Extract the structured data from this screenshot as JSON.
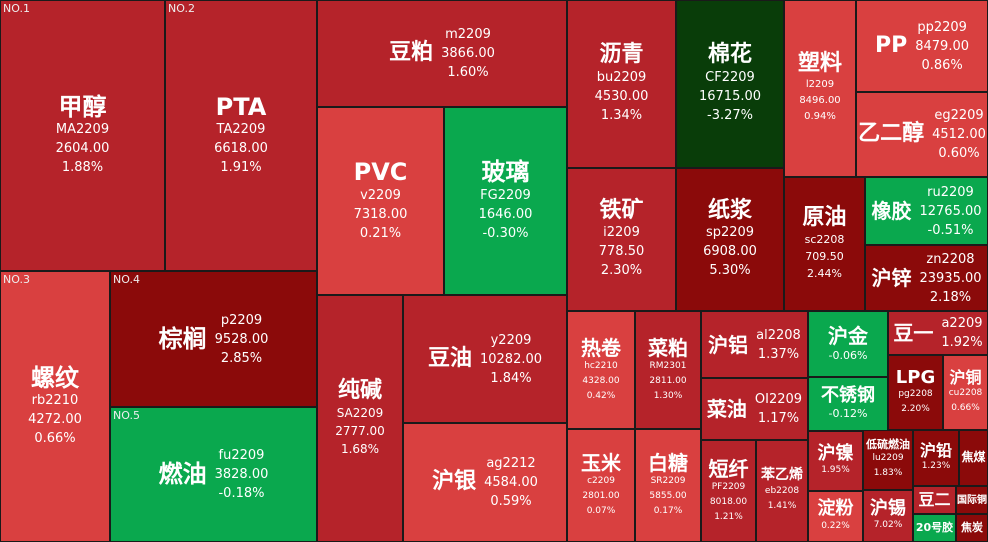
{
  "colors": {
    "up_strong": "#8b0a0a",
    "up_mid": "#b5232a",
    "up_light": "#d94040",
    "down_light": "#0aa84e",
    "down_dark": "#093d09",
    "background": "#1a1a1a"
  },
  "tiles": [
    {
      "id": "jiachun",
      "rank": "NO.1",
      "name": "甲醇",
      "code": "MA2209",
      "price": "2604.00",
      "pct": "1.88%"
    },
    {
      "id": "pta",
      "rank": "NO.2",
      "name": "PTA",
      "code": "TA2209",
      "price": "6618.00",
      "pct": "1.91%"
    },
    {
      "id": "doupo",
      "name": "豆粕",
      "code": "m2209",
      "price": "3866.00",
      "pct": "1.60%"
    },
    {
      "id": "liqing",
      "name": "沥青",
      "code": "bu2209",
      "price": "4530.00",
      "pct": "1.34%"
    },
    {
      "id": "mianhua",
      "name": "棉花",
      "code": "CF2209",
      "price": "16715.00",
      "pct": "-3.27%"
    },
    {
      "id": "suliao",
      "name": "塑料",
      "code": "l2209",
      "price": "8496.00",
      "pct": "0.94%"
    },
    {
      "id": "pp",
      "name": "PP",
      "code": "pp2209",
      "price": "8479.00",
      "pct": "0.86%"
    },
    {
      "id": "yierchun",
      "name": "乙二醇",
      "code": "eg2209",
      "price": "4512.00",
      "pct": "0.60%"
    },
    {
      "id": "pvc",
      "name": "PVC",
      "code": "v2209",
      "price": "7318.00",
      "pct": "0.21%"
    },
    {
      "id": "boli",
      "name": "玻璃",
      "code": "FG2209",
      "price": "1646.00",
      "pct": "-0.30%"
    },
    {
      "id": "tiekuang",
      "name": "铁矿",
      "code": "i2209",
      "price": "778.50",
      "pct": "2.30%"
    },
    {
      "id": "zhijiang",
      "name": "纸浆",
      "code": "sp2209",
      "price": "6908.00",
      "pct": "5.30%"
    },
    {
      "id": "yuanyou",
      "name": "原油",
      "code": "sc2208",
      "price": "709.50",
      "pct": "2.44%"
    },
    {
      "id": "xiangjiao",
      "name": "橡胶",
      "code": "ru2209",
      "price": "12765.00",
      "pct": "-0.51%"
    },
    {
      "id": "huxin",
      "name": "沪锌",
      "code": "zn2208",
      "price": "23935.00",
      "pct": "2.18%"
    },
    {
      "id": "luowen",
      "rank": "NO.3",
      "name": "螺纹",
      "code": "rb2210",
      "price": "4272.00",
      "pct": "0.66%"
    },
    {
      "id": "zonglv",
      "rank": "NO.4",
      "name": "棕榈",
      "code": "p2209",
      "price": "9528.00",
      "pct": "2.85%"
    },
    {
      "id": "ranyou",
      "rank": "NO.5",
      "name": "燃油",
      "code": "fu2209",
      "price": "3828.00",
      "pct": "-0.18%"
    },
    {
      "id": "chunjian",
      "name": "纯碱",
      "code": "SA2209",
      "price": "2777.00",
      "pct": "1.68%"
    },
    {
      "id": "douyou",
      "name": "豆油",
      "code": "y2209",
      "price": "10282.00",
      "pct": "1.84%"
    },
    {
      "id": "huyin",
      "name": "沪银",
      "code": "ag2212",
      "price": "4584.00",
      "pct": "0.59%"
    },
    {
      "id": "rejuan",
      "name": "热卷",
      "code": "hc2210",
      "price": "4328.00",
      "pct": "0.42%"
    },
    {
      "id": "caipo",
      "name": "菜粕",
      "code": "RM2301",
      "price": "2811.00",
      "pct": "1.30%"
    },
    {
      "id": "hulv",
      "name": "沪铝",
      "code": "al2208",
      "price": "",
      "pct": "1.37%"
    },
    {
      "id": "hujin",
      "name": "沪金",
      "code": "",
      "price": "",
      "pct": "-0.06%"
    },
    {
      "id": "douyi",
      "name": "豆一",
      "code": "a2209",
      "price": "",
      "pct": "1.92%"
    },
    {
      "id": "caiyou",
      "name": "菜油",
      "code": "OI2209",
      "price": "",
      "pct": "1.17%"
    },
    {
      "id": "buxiugang",
      "name": "不锈钢",
      "code": "",
      "price": "",
      "pct": "-0.12%"
    },
    {
      "id": "lpg",
      "name": "LPG",
      "code": "pg2208",
      "price": "",
      "pct": "2.20%"
    },
    {
      "id": "hutong",
      "name": "沪铜",
      "code": "cu2208",
      "price": "",
      "pct": "0.66%"
    },
    {
      "id": "yumi",
      "name": "玉米",
      "code": "c2209",
      "price": "2801.00",
      "pct": "0.07%"
    },
    {
      "id": "baitang",
      "name": "白糖",
      "code": "SR2209",
      "price": "5855.00",
      "pct": "0.17%"
    },
    {
      "id": "duanxian",
      "name": "短纤",
      "code": "PF2209",
      "price": "8018.00",
      "pct": "1.21%"
    },
    {
      "id": "benyixi",
      "name": "苯乙烯",
      "code": "eb2208",
      "price": "",
      "pct": "1.41%"
    },
    {
      "id": "hunie",
      "name": "沪镍",
      "code": "",
      "price": "",
      "pct": "1.95%"
    },
    {
      "id": "diliu",
      "name": "低硫燃油",
      "code": "lu2209",
      "price": "",
      "pct": "1.83%"
    },
    {
      "id": "huqian",
      "name": "沪铅",
      "code": "",
      "price": "",
      "pct": "1.23%"
    },
    {
      "id": "jiaomei",
      "name": "焦煤",
      "code": "",
      "price": "",
      "pct": ""
    },
    {
      "id": "dianfen",
      "name": "淀粉",
      "code": "",
      "price": "",
      "pct": "0.22%"
    },
    {
      "id": "huxi",
      "name": "沪锡",
      "code": "",
      "price": "",
      "pct": "7.02%"
    },
    {
      "id": "douer",
      "name": "豆二",
      "code": "",
      "price": "",
      "pct": ""
    },
    {
      "id": "guoji",
      "name": "国际铜",
      "code": "",
      "price": "",
      "pct": ""
    },
    {
      "id": "erlinghao",
      "name": "20号胶",
      "code": "",
      "price": "",
      "pct": ""
    },
    {
      "id": "jiaotan",
      "name": "焦炭",
      "code": "",
      "price": "",
      "pct": ""
    }
  ]
}
